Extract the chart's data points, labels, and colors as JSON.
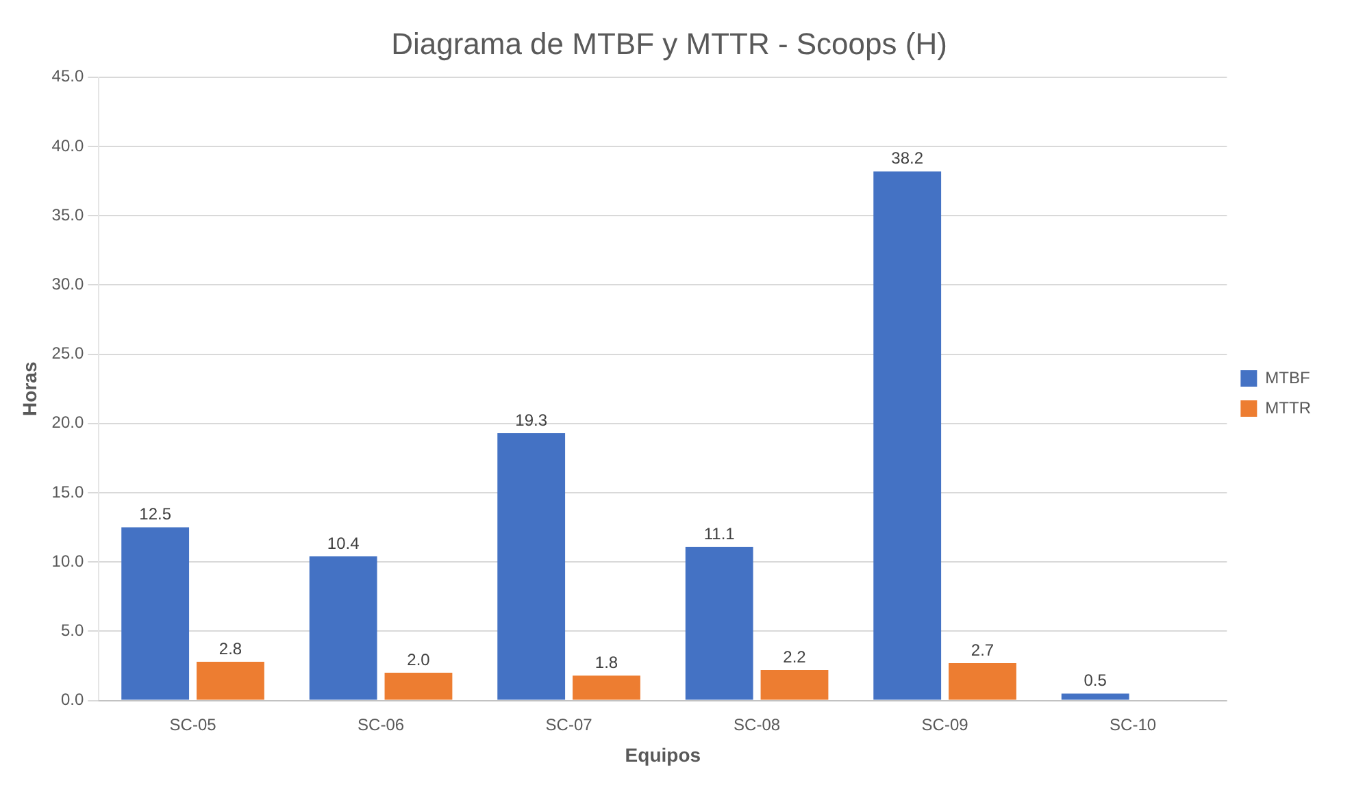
{
  "chart_data": {
    "type": "bar",
    "title": "Diagrama de MTBF y MTTR - Scoops (H)",
    "xlabel": "Equipos",
    "ylabel": "Horas",
    "categories": [
      "SC-05",
      "SC-06",
      "SC-07",
      "SC-08",
      "SC-09",
      "SC-10"
    ],
    "series": [
      {
        "name": "MTBF",
        "color": "#4472c4",
        "values": [
          12.5,
          10.4,
          19.3,
          11.1,
          38.2,
          0.5
        ],
        "value_labels": [
          "12.5",
          "10.4",
          "19.3",
          "11.1",
          "38.2",
          "0.5"
        ]
      },
      {
        "name": "MTTR",
        "color": "#ed7d31",
        "values": [
          2.8,
          2.0,
          1.8,
          2.2,
          2.7,
          null
        ],
        "value_labels": [
          "2.8",
          "2.0",
          "1.8",
          "2.2",
          "2.7",
          null
        ]
      }
    ],
    "ylim": [
      0,
      45
    ],
    "yticks": [
      {
        "value": 0,
        "label": "0.0"
      },
      {
        "value": 5,
        "label": "5.0"
      },
      {
        "value": 10,
        "label": "10.0"
      },
      {
        "value": 15,
        "label": "15.0"
      },
      {
        "value": 20,
        "label": "20.0"
      },
      {
        "value": 25,
        "label": "25.0"
      },
      {
        "value": 30,
        "label": "30.0"
      },
      {
        "value": 35,
        "label": "35.0"
      },
      {
        "value": 40,
        "label": "40.0"
      },
      {
        "value": 45,
        "label": "45.0"
      }
    ],
    "grid": "y",
    "legend": "right"
  }
}
